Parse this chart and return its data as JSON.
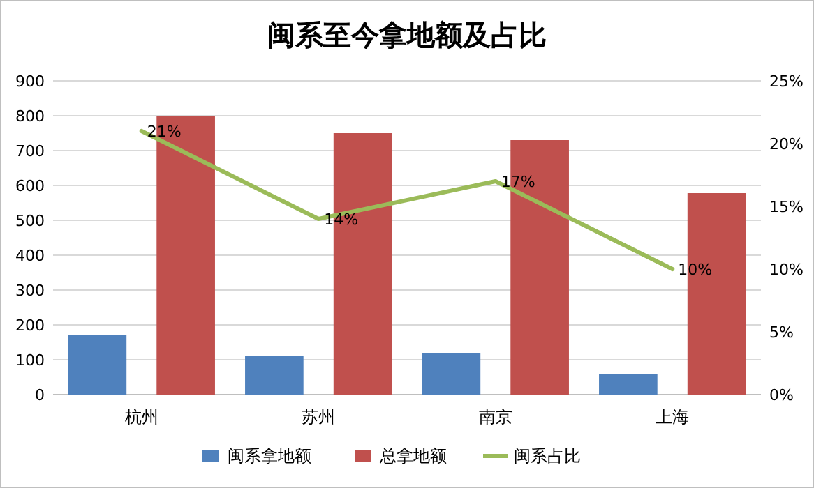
{
  "chart_data": {
    "type": "bar",
    "title": "闽系至今拿地额及占比",
    "categories": [
      "杭州",
      "苏州",
      "南京",
      "上海"
    ],
    "series": [
      {
        "name": "闽系拿地额",
        "color": "#4f81bd",
        "values": [
          170,
          110,
          120,
          58
        ]
      },
      {
        "name": "总拿地额",
        "color": "#c0504d",
        "values": [
          800,
          750,
          730,
          578
        ]
      },
      {
        "name": "闽系占比",
        "type": "line",
        "axis": "y2",
        "color": "#9bbb59",
        "values": [
          21,
          14,
          17,
          10
        ],
        "value_labels": [
          "21%",
          "14%",
          "17%",
          "10%"
        ]
      }
    ],
    "ylim": [
      0,
      900
    ],
    "yticks": [
      0,
      100,
      200,
      300,
      400,
      500,
      600,
      700,
      800,
      900
    ],
    "y2lim": [
      0,
      25
    ],
    "y2ticks": [
      {
        "value": 0,
        "label": "0%"
      },
      {
        "value": 5,
        "label": "5%"
      },
      {
        "value": 10,
        "label": "10%"
      },
      {
        "value": 15,
        "label": "15%"
      },
      {
        "value": 20,
        "label": "20%"
      },
      {
        "value": 25,
        "label": "25%"
      }
    ],
    "grid": "y",
    "legend": "bottom",
    "marker": "none"
  }
}
